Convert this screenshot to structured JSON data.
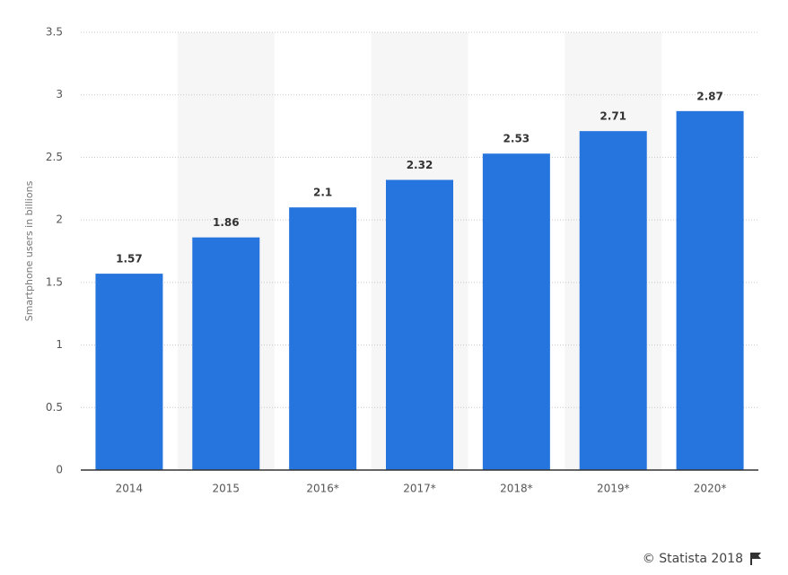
{
  "chart_data": {
    "type": "bar",
    "y_label": "Smartphone users in billions",
    "categories": [
      "2014",
      "2015",
      "2016*",
      "2017*",
      "2018*",
      "2019*",
      "2020*"
    ],
    "values": [
      1.57,
      1.86,
      2.1,
      2.32,
      2.53,
      2.71,
      2.87
    ],
    "color": "#2674dd",
    "ylim": [
      0,
      3.5
    ],
    "yticks": [
      0,
      0.5,
      1,
      1.5,
      2,
      2.5,
      3,
      3.5
    ],
    "grid": true,
    "credit": "© Statista 2018"
  }
}
